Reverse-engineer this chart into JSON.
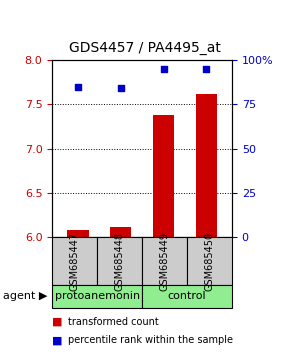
{
  "title": "GDS4457 / PA4495_at",
  "samples": [
    "GSM685447",
    "GSM685448",
    "GSM685449",
    "GSM685450"
  ],
  "bar_values": [
    6.08,
    6.12,
    7.38,
    7.62
  ],
  "percentile_values": [
    85,
    84,
    95,
    95
  ],
  "ylim_left": [
    6.0,
    8.0
  ],
  "ylim_right": [
    0,
    100
  ],
  "yticks_left": [
    6.0,
    6.5,
    7.0,
    7.5,
    8.0
  ],
  "yticks_right": [
    0,
    25,
    50,
    75,
    100
  ],
  "ytick_labels_right": [
    "0",
    "25",
    "50",
    "75",
    "100%"
  ],
  "bar_color": "#cc0000",
  "scatter_color": "#0000cc",
  "grid_yticks": [
    6.5,
    7.0,
    7.5
  ],
  "group_labels": [
    "protoanemonin",
    "control"
  ],
  "group_color": "#90ee90",
  "agent_label": "agent",
  "legend_red_label": "transformed count",
  "legend_blue_label": "percentile rank within the sample",
  "sample_box_color": "#cccccc",
  "bar_width": 0.5,
  "x_positions": [
    0,
    1,
    2,
    3
  ]
}
